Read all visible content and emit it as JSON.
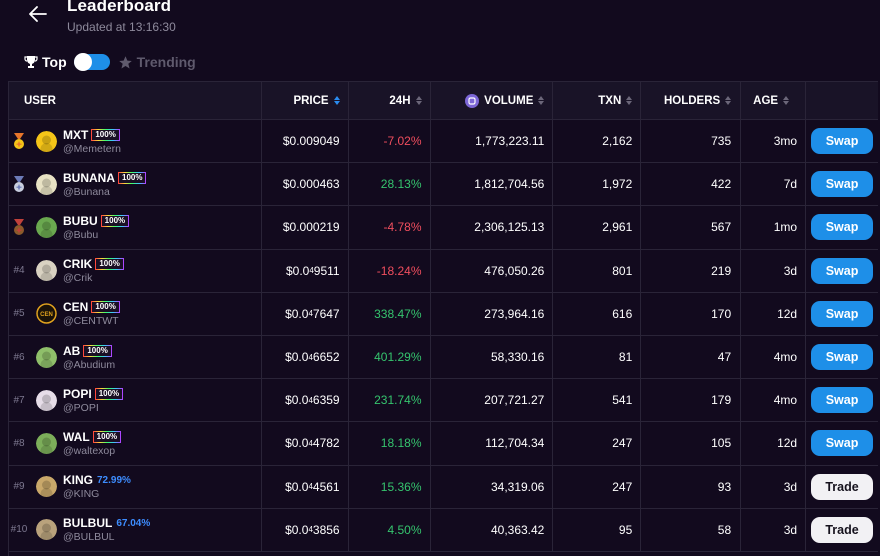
{
  "header": {
    "title": "Leaderboard",
    "updated_prefix": "Updated at ",
    "updated_time": "13:16:30"
  },
  "tabs": {
    "top_label": "Top",
    "trending_label": "Trending",
    "toggle_state": "top"
  },
  "table": {
    "columns": [
      "USER",
      "PRICE",
      "24H",
      "VOLUME",
      "TXN",
      "HOLDERS",
      "AGE"
    ],
    "rows": [
      {
        "rank": "",
        "medal": "gold",
        "avatar_icon": "pineapple-icon",
        "avatar_bg": "#f5c518",
        "name": "MXT",
        "badge": "100%",
        "pct": "",
        "handle": "@Memetern",
        "price_main": "$0.009049",
        "price_sub": "",
        "price_tail": "",
        "change": "-7.02%",
        "change_dir": "neg",
        "volume": "1,773,223.11",
        "txn": "2,162",
        "holders": "735",
        "age": "3mo",
        "action": "Swap"
      },
      {
        "rank": "",
        "medal": "silver",
        "avatar_icon": "banana-icon",
        "avatar_bg": "#e8e2c4",
        "name": "BUNANA",
        "badge": "100%",
        "pct": "",
        "handle": "@Bunana",
        "price_main": "$0.000463",
        "price_sub": "",
        "price_tail": "",
        "change": "28.13%",
        "change_dir": "pos",
        "volume": "1,812,704.56",
        "txn": "1,972",
        "holders": "422",
        "age": "7d",
        "action": "Swap"
      },
      {
        "rank": "",
        "medal": "bronze",
        "avatar_icon": "frog-icon",
        "avatar_bg": "#6aa84f",
        "name": "BUBU",
        "badge": "100%",
        "pct": "",
        "handle": "@Bubu",
        "price_main": "$0.000219",
        "price_sub": "",
        "price_tail": "",
        "change": "-4.78%",
        "change_dir": "neg",
        "volume": "2,306,125.13",
        "txn": "2,961",
        "holders": "567",
        "age": "1mo",
        "action": "Swap"
      },
      {
        "rank": "#4",
        "medal": "",
        "avatar_icon": "cat-icon",
        "avatar_bg": "#d9d2c2",
        "name": "CRIK",
        "badge": "100%",
        "pct": "",
        "handle": "@Crik",
        "price_main": "$0.0",
        "price_sub": "4",
        "price_tail": "9511",
        "change": "-18.24%",
        "change_dir": "neg",
        "volume": "476,050.26",
        "txn": "801",
        "holders": "219",
        "age": "3d",
        "action": "Swap"
      },
      {
        "rank": "#5",
        "medal": "",
        "avatar_icon": "cen-coin-icon",
        "avatar_bg": "#1a1208",
        "name": "CEN",
        "badge": "100%",
        "pct": "",
        "handle": "@CENTWT",
        "price_main": "$0.0",
        "price_sub": "4",
        "price_tail": "7647",
        "change": "338.47%",
        "change_dir": "pos",
        "volume": "273,964.16",
        "txn": "616",
        "holders": "170",
        "age": "12d",
        "action": "Swap"
      },
      {
        "rank": "#6",
        "medal": "",
        "avatar_icon": "bird-icon",
        "avatar_bg": "#8fbf6a",
        "name": "AB",
        "badge": "100%",
        "pct": "",
        "handle": "@Abudium",
        "price_main": "$0.0",
        "price_sub": "4",
        "price_tail": "6652",
        "change": "401.29%",
        "change_dir": "pos",
        "volume": "58,330.16",
        "txn": "81",
        "holders": "47",
        "age": "4mo",
        "action": "Swap"
      },
      {
        "rank": "#7",
        "medal": "",
        "avatar_icon": "character-icon",
        "avatar_bg": "#e6dde8",
        "name": "POPI",
        "badge": "100%",
        "pct": "",
        "handle": "@POPI",
        "price_main": "$0.0",
        "price_sub": "4",
        "price_tail": "6359",
        "change": "231.74%",
        "change_dir": "pos",
        "volume": "207,721.27",
        "txn": "541",
        "holders": "179",
        "age": "4mo",
        "action": "Swap"
      },
      {
        "rank": "#8",
        "medal": "",
        "avatar_icon": "frog-icon",
        "avatar_bg": "#7cae5a",
        "name": "WAL",
        "badge": "100%",
        "pct": "",
        "handle": "@waltexop",
        "price_main": "$0.0",
        "price_sub": "4",
        "price_tail": "4782",
        "change": "18.18%",
        "change_dir": "pos",
        "volume": "112,704.34",
        "txn": "247",
        "holders": "105",
        "age": "12d",
        "action": "Swap"
      },
      {
        "rank": "#9",
        "medal": "",
        "avatar_icon": "crown-dog-icon",
        "avatar_bg": "#c9a86a",
        "name": "KING",
        "badge": "",
        "pct": "72.99%",
        "handle": "@KING",
        "price_main": "$0.0",
        "price_sub": "4",
        "price_tail": "4561",
        "change": "15.36%",
        "change_dir": "pos",
        "volume": "34,319.06",
        "txn": "247",
        "holders": "93",
        "age": "3d",
        "action": "Trade"
      },
      {
        "rank": "#10",
        "medal": "",
        "avatar_icon": "bird-icon",
        "avatar_bg": "#b9a27c",
        "name": "BULBUL",
        "badge": "",
        "pct": "67.04%",
        "handle": "@BULBUL",
        "price_main": "$0.0",
        "price_sub": "4",
        "price_tail": "3856",
        "change": "4.50%",
        "change_dir": "pos",
        "volume": "40,363.42",
        "txn": "95",
        "holders": "58",
        "age": "3d",
        "action": "Trade"
      }
    ]
  },
  "colors": {
    "background": "#120a1e",
    "accent_blue": "#1e8fe8",
    "negative": "#f04e5e",
    "positive": "#35c46e"
  }
}
